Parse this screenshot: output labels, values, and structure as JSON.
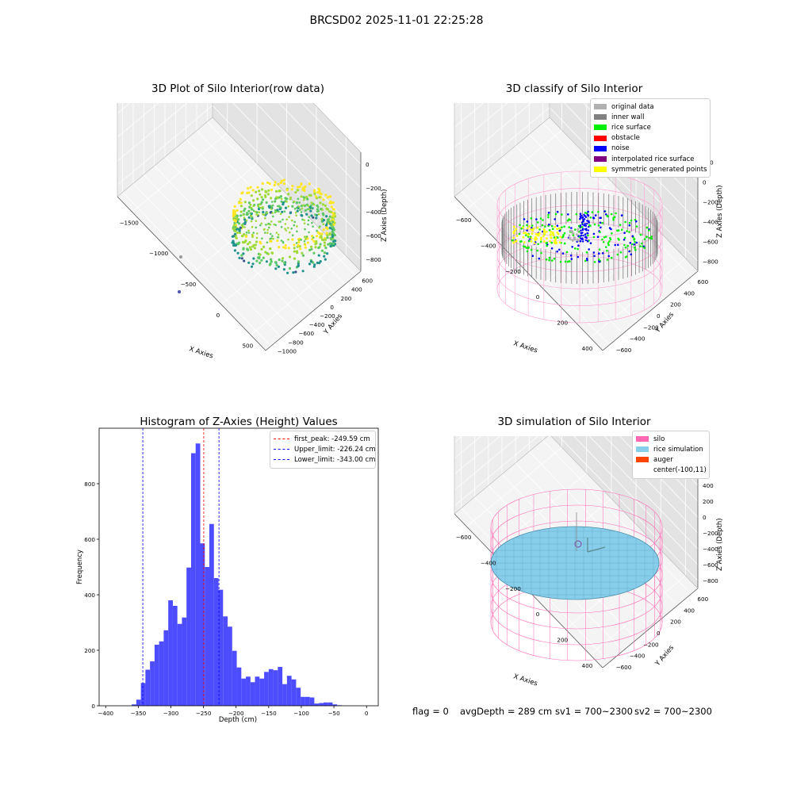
{
  "suptitle": "BRCSD02 2025-11-01 22:25:28",
  "colors": {
    "hist_bar": "#4d4dff",
    "first_peak": "#ff0000",
    "limits": "#0000ff",
    "original_data": "#b0b0b0",
    "inner_wall": "#808080",
    "rice_surface": "#00ee00",
    "obstacle": "#ff0000",
    "noise": "#0000ff",
    "interpolated": "#800080",
    "symmetric": "#ffff00",
    "silo": "#ff69b4",
    "rice_simulation": "#87ceeb",
    "auger": "#ff4500"
  },
  "chart_data": [
    {
      "type": "scatter",
      "dimensions": 3,
      "title": "3D Plot of Silo Interior(row data)",
      "xlabel": "X Axies",
      "ylabel": "Y Axies",
      "zlabel": "Z Axies (Depth)",
      "x_ticks": [
        "−1500",
        "−1000",
        "−500",
        "0",
        "500"
      ],
      "y_ticks": [
        "600",
        "400",
        "200",
        "0",
        "−200",
        "−400",
        "−600",
        "−800",
        "−1000"
      ],
      "z_ticks": [
        "0",
        "−200",
        "−400",
        "−600",
        "−800"
      ],
      "xlim": [
        -1800,
        600
      ],
      "ylim": [
        -1000,
        700
      ],
      "zlim": [
        -900,
        50
      ],
      "colormap": "viridis",
      "series": [
        {
          "name": "",
          "note_shape": "ring of points (silo interior) colored by depth, centered near x≈-100, y≈0, z from about -150 to -600"
        }
      ],
      "outliers": [
        {
          "x": -1600,
          "y": -800,
          "z": -700
        },
        {
          "x": -1500,
          "y": -400,
          "z": -750
        }
      ]
    },
    {
      "type": "scatter",
      "dimensions": 3,
      "title": "3D classify of Silo Interior",
      "xlabel": "X Axies",
      "ylabel": "Y Axies",
      "zlabel": "Z Axies (Depth)",
      "x_ticks": [
        "−600",
        "−400",
        "−200",
        "0",
        "200",
        "400"
      ],
      "y_ticks": [
        "600",
        "400",
        "200",
        "0",
        "−200",
        "−400",
        "−600"
      ],
      "z_ticks": [
        "200",
        "0",
        "−200",
        "−400",
        "−600",
        "−800"
      ],
      "xlim": [
        -700,
        500
      ],
      "ylim": [
        -650,
        650
      ],
      "zlim": [
        -900,
        300
      ],
      "legend": [
        {
          "label": "original data",
          "color": "#b0b0b0"
        },
        {
          "label": "inner wall",
          "color": "#808080"
        },
        {
          "label": "rice surface",
          "color": "#00ee00"
        },
        {
          "label": "obstacle",
          "color": "#ff0000"
        },
        {
          "label": "noise",
          "color": "#0000ff"
        },
        {
          "label": "interpolated rice surface",
          "color": "#800080"
        },
        {
          "label": "symmetric generated points",
          "color": "#ffff00"
        }
      ],
      "legend_position": "top-right"
    },
    {
      "type": "bar",
      "title": "Histogram of Z-Axies (Height) Values",
      "xlabel": "Depth (cm)",
      "ylabel": "Frequency",
      "xlim": [
        -410,
        18
      ],
      "ylim": [
        0,
        1000
      ],
      "x_ticks": [
        "−400",
        "−350",
        "−300",
        "−250",
        "−200",
        "−150",
        "−100",
        "−50",
        "0"
      ],
      "y_ticks": [
        "0",
        "200",
        "400",
        "600",
        "800"
      ],
      "bin_start": -360,
      "bin_width": 7,
      "values": [
        5,
        22,
        82,
        130,
        160,
        220,
        232,
        272,
        380,
        360,
        295,
        318,
        498,
        910,
        945,
        585,
        500,
        655,
        460,
        418,
        322,
        285,
        198,
        138,
        98,
        105,
        85,
        105,
        98,
        122,
        132,
        128,
        140,
        78,
        108,
        95,
        65,
        32,
        32,
        30,
        8,
        10,
        12,
        12,
        5,
        2
      ],
      "lines": [
        {
          "label": "first_peak: -249.59 cm",
          "x": -249.59,
          "color": "#ff0000"
        },
        {
          "label": "Upper_limit: -226.24 cm",
          "x": -226.24,
          "color": "#0000ff"
        },
        {
          "label": "Lower_limit: -343.00 cm",
          "x": -343.0,
          "color": "#0000ff"
        }
      ],
      "legend_position": "top-right"
    },
    {
      "type": "scatter",
      "dimensions": 3,
      "title": "3D simulation of Silo Interior",
      "xlabel": "X Axies",
      "ylabel": "Y Axies",
      "zlabel": "Z Axies (Depth)",
      "x_ticks": [
        "−600",
        "−400",
        "−200",
        "0",
        "200",
        "400"
      ],
      "y_ticks": [
        "600",
        "400",
        "200",
        "0",
        "−200",
        "−400",
        "−600"
      ],
      "z_ticks": [
        "400",
        "200",
        "0",
        "−200",
        "−400",
        "−600",
        "−800"
      ],
      "xlim": [
        -700,
        500
      ],
      "ylim": [
        -650,
        650
      ],
      "zlim": [
        -900,
        450
      ],
      "legend": [
        {
          "label": "silo",
          "color": "#ff69b4"
        },
        {
          "label": "rice simulation",
          "color": "#87ceeb"
        },
        {
          "label": "auger",
          "color": "#ff4500"
        },
        {
          "label": "center(-100,11)",
          "color": ""
        }
      ],
      "legend_position": "top-right"
    }
  ],
  "footer": {
    "flag": "flag = 0",
    "avg_depth": "avgDepth = 289 cm",
    "sv1": "sv1 = 700~2300",
    "sv2": "sv2 = 700~2300"
  }
}
